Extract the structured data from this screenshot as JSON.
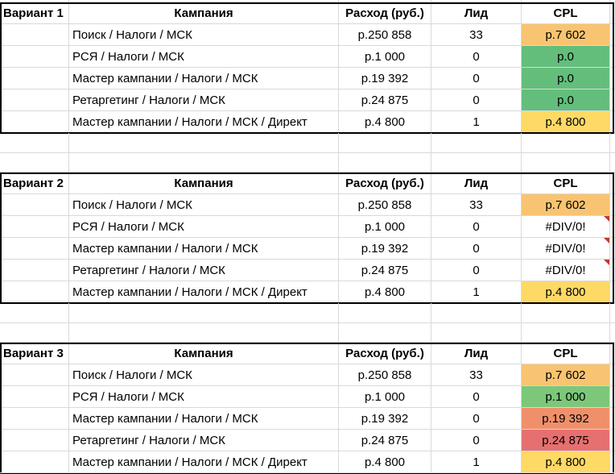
{
  "colors": {
    "orange": "#f8c471",
    "green": "#63be7b",
    "yellow": "#ffd966",
    "white": "#ffffff",
    "green_light": "#7dc77a",
    "salmon": "#f0906a",
    "red": "#e6706f"
  },
  "headers": {
    "campaign": "Кампания",
    "cost": "Расход (руб.)",
    "leads": "Лид",
    "cpl": "CPL"
  },
  "variants": [
    {
      "label": "Вариант 1",
      "rows": [
        {
          "campaign": "Поиск / Налоги / МСК",
          "cost": "р.250 858",
          "leads": "33",
          "cpl": "р.7 602",
          "cpl_color": "orange",
          "error": false
        },
        {
          "campaign": "РСЯ / Налоги / МСК",
          "cost": "р.1 000",
          "leads": "0",
          "cpl": "р.0",
          "cpl_color": "green",
          "error": false
        },
        {
          "campaign": "Мастер кампании / Налоги / МСК",
          "cost": "р.19 392",
          "leads": "0",
          "cpl": "р.0",
          "cpl_color": "green",
          "error": false
        },
        {
          "campaign": "Ретаргетинг / Налоги / МСК",
          "cost": "р.24 875",
          "leads": "0",
          "cpl": "р.0",
          "cpl_color": "green",
          "error": false
        },
        {
          "campaign": "Мастер кампании / Налоги / МСК / Директ",
          "cost": "р.4 800",
          "leads": "1",
          "cpl": "р.4 800",
          "cpl_color": "yellow",
          "error": false
        }
      ]
    },
    {
      "label": "Вариант 2",
      "rows": [
        {
          "campaign": "Поиск / Налоги / МСК",
          "cost": "р.250 858",
          "leads": "33",
          "cpl": "р.7 602",
          "cpl_color": "orange",
          "error": false
        },
        {
          "campaign": "РСЯ / Налоги / МСК",
          "cost": "р.1 000",
          "leads": "0",
          "cpl": "#DIV/0!",
          "cpl_color": "white",
          "error": true
        },
        {
          "campaign": "Мастер кампании / Налоги / МСК",
          "cost": "р.19 392",
          "leads": "0",
          "cpl": "#DIV/0!",
          "cpl_color": "white",
          "error": true
        },
        {
          "campaign": "Ретаргетинг / Налоги / МСК",
          "cost": "р.24 875",
          "leads": "0",
          "cpl": "#DIV/0!",
          "cpl_color": "white",
          "error": true
        },
        {
          "campaign": "Мастер кампании / Налоги / МСК / Директ",
          "cost": "р.4 800",
          "leads": "1",
          "cpl": "р.4 800",
          "cpl_color": "yellow",
          "error": false
        }
      ]
    },
    {
      "label": "Вариант 3",
      "rows": [
        {
          "campaign": "Поиск / Налоги / МСК",
          "cost": "р.250 858",
          "leads": "33",
          "cpl": "р.7 602",
          "cpl_color": "orange",
          "error": false
        },
        {
          "campaign": "РСЯ / Налоги / МСК",
          "cost": "р.1 000",
          "leads": "0",
          "cpl": "р.1 000",
          "cpl_color": "green_light",
          "error": false
        },
        {
          "campaign": "Мастер кампании / Налоги / МСК",
          "cost": "р.19 392",
          "leads": "0",
          "cpl": "р.19 392",
          "cpl_color": "salmon",
          "error": false
        },
        {
          "campaign": "Ретаргетинг / Налоги / МСК",
          "cost": "р.24 875",
          "leads": "0",
          "cpl": "р.24 875",
          "cpl_color": "red",
          "error": false
        },
        {
          "campaign": "Мастер кампании / Налоги / МСК / Директ",
          "cost": "р.4 800",
          "leads": "1",
          "cpl": "р.4 800",
          "cpl_color": "yellow",
          "error": false
        }
      ]
    }
  ]
}
